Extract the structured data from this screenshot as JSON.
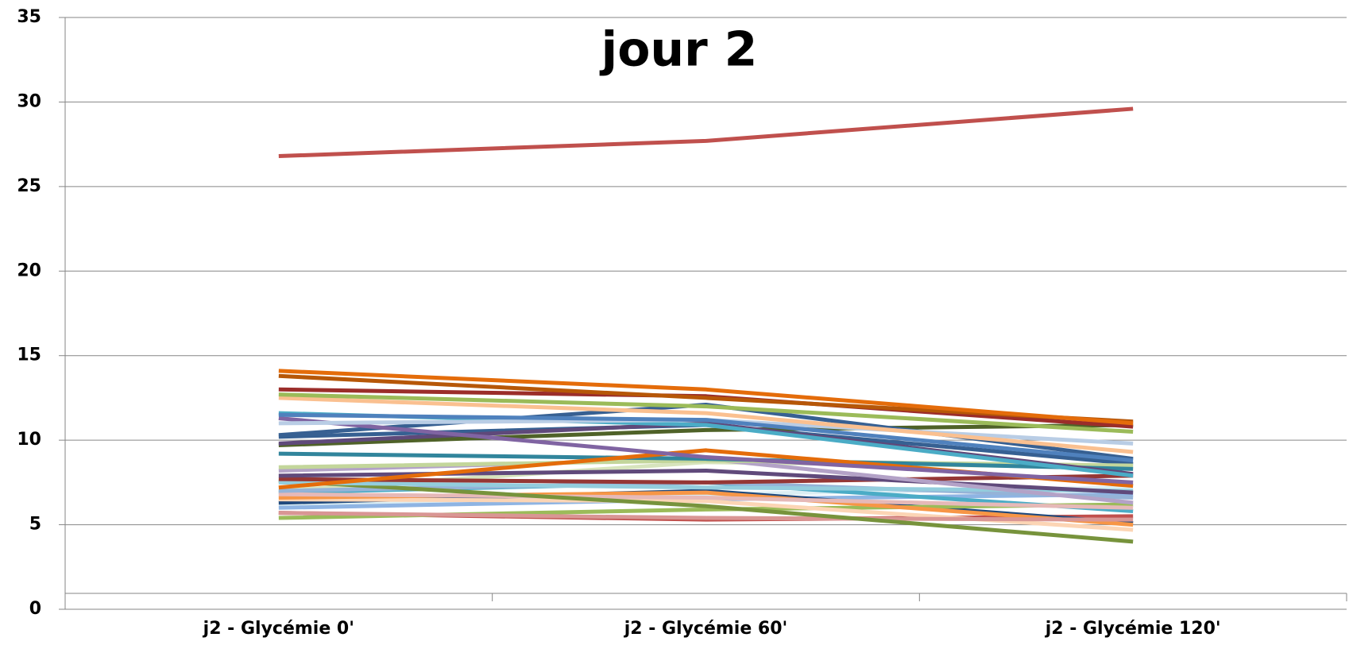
{
  "chart_data": {
    "type": "line",
    "title": "jour 2",
    "categories": [
      "j2 - Glycémie 0'",
      "j2 - Glycémie 60'",
      "j2 - Glycémie 120'"
    ],
    "ylim": [
      0,
      35
    ],
    "yticks": [
      0,
      5,
      10,
      15,
      20,
      25,
      30,
      35
    ],
    "grid": true,
    "series": [
      {
        "color": "#C0504D",
        "values": [
          26.8,
          27.7,
          29.6
        ]
      },
      {
        "color": "#E46C0A",
        "values": [
          14.1,
          13.0,
          11.0
        ]
      },
      {
        "color": "#B65708",
        "values": [
          13.8,
          12.5,
          11.1
        ]
      },
      {
        "color": "#9B2D2A",
        "values": [
          13.0,
          12.6,
          10.8
        ]
      },
      {
        "color": "#9BBB59",
        "values": [
          12.7,
          12.0,
          10.5
        ]
      },
      {
        "color": "#FAC090",
        "values": [
          12.5,
          11.6,
          9.3
        ]
      },
      {
        "color": "#4F81BD",
        "values": [
          11.5,
          11.2,
          8.8
        ]
      },
      {
        "color": "#B9CDE5",
        "values": [
          11.0,
          11.2,
          9.8
        ]
      },
      {
        "color": "#8064A2",
        "values": [
          11.3,
          9.0,
          7.5
        ]
      },
      {
        "color": "#4BACC6",
        "values": [
          11.6,
          10.9,
          7.9
        ]
      },
      {
        "color": "#376092",
        "values": [
          10.3,
          12.1,
          8.9
        ]
      },
      {
        "color": "#5F497A",
        "values": [
          9.8,
          11.0,
          8.0
        ]
      },
      {
        "color": "#4F6228",
        "values": [
          9.7,
          10.6,
          10.9
        ]
      },
      {
        "color": "#E46C0A",
        "values": [
          7.2,
          9.4,
          7.3
        ]
      },
      {
        "color": "#31859C",
        "values": [
          9.2,
          8.9,
          8.3
        ]
      },
      {
        "color": "#C3D69B",
        "values": [
          8.4,
          8.8,
          8.5
        ]
      },
      {
        "color": "#B3A2C7",
        "values": [
          8.2,
          8.9,
          6.3
        ]
      },
      {
        "color": "#604A7B",
        "values": [
          7.9,
          8.2,
          6.9
        ]
      },
      {
        "color": "#953735",
        "values": [
          7.7,
          7.5,
          7.9
        ]
      },
      {
        "color": "#93CDDD",
        "values": [
          7.5,
          7.2,
          7.0
        ]
      },
      {
        "color": "#77933C",
        "values": [
          7.6,
          6.1,
          4.0
        ]
      },
      {
        "color": "#95B3D7",
        "values": [
          7.0,
          7.5,
          6.6
        ]
      },
      {
        "color": "#E6B9B8",
        "values": [
          6.8,
          6.6,
          6.0
        ]
      },
      {
        "color": "#D99694",
        "values": [
          5.7,
          5.4,
          5.3
        ]
      },
      {
        "color": "#F79646",
        "values": [
          6.6,
          6.9,
          5.0
        ]
      },
      {
        "color": "#FCD5B5",
        "values": [
          6.5,
          6.4,
          4.7
        ]
      },
      {
        "color": "#9BBB59",
        "values": [
          5.4,
          5.9,
          6.2
        ]
      },
      {
        "color": "#4BACC6",
        "values": [
          6.9,
          7.5,
          5.8
        ]
      },
      {
        "color": "#1F497D",
        "values": [
          6.3,
          7.0,
          5.1
        ]
      },
      {
        "color": "#C0504D",
        "values": [
          5.7,
          5.3,
          5.5
        ]
      },
      {
        "color": "#8EB4E3",
        "values": [
          6.0,
          6.5,
          6.8
        ]
      },
      {
        "color": "#DBEEF4",
        "values": [
          6.2,
          6.8,
          7.2
        ]
      },
      {
        "color": "#D7E4BD",
        "values": [
          7.0,
          8.7,
          8.4
        ]
      },
      {
        "color": "#366092",
        "values": [
          10.2,
          10.9,
          8.6
        ]
      }
    ]
  }
}
